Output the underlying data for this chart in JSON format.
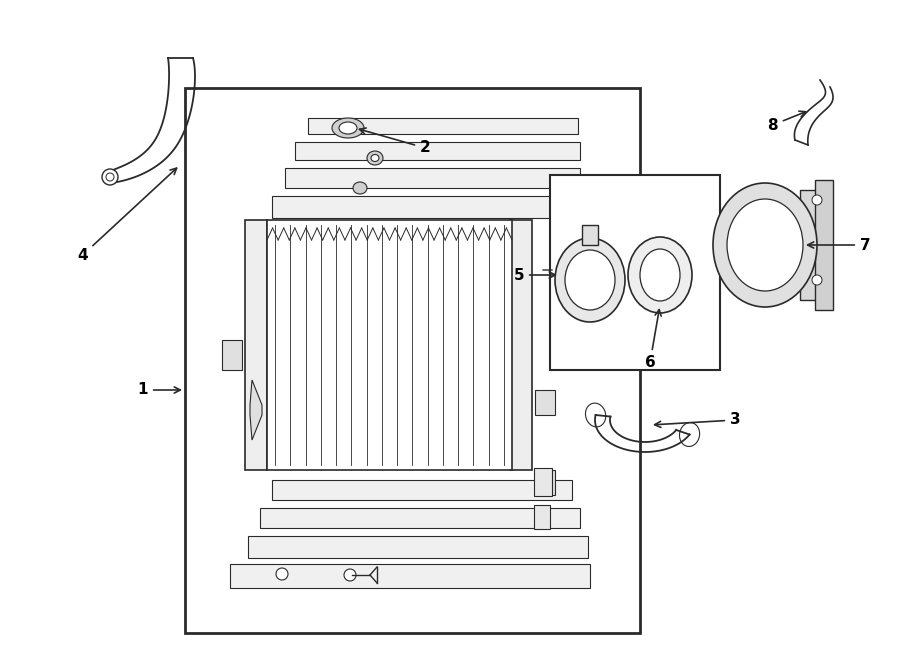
{
  "bg_color": "#ffffff",
  "line_color": "#2a2a2a",
  "label_color": "#000000",
  "fig_width": 9.0,
  "fig_height": 6.61,
  "dpi": 100
}
